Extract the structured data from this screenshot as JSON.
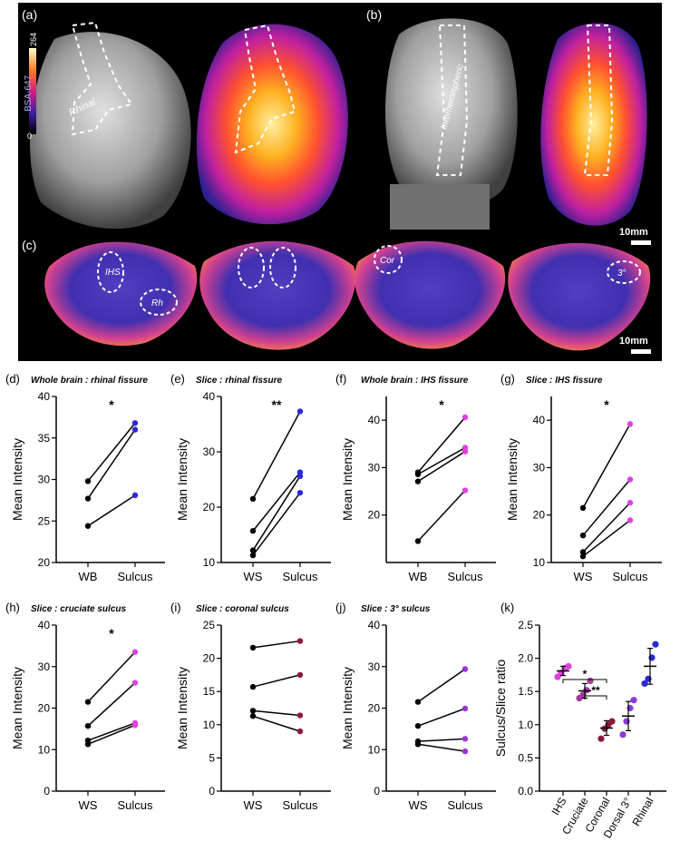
{
  "images": {
    "panel_labels": [
      "(a)",
      "(b)",
      "(c)"
    ],
    "colorbar": {
      "label": "BSA-647",
      "max": "264",
      "min": "0"
    },
    "annotations": {
      "rhinal": "Rhinal",
      "interhemispheric": "Interhemispheric",
      "ihs": "IHS",
      "rh": "Rh",
      "cor": "Cor",
      "third": "3°"
    },
    "scalebars": [
      "10mm",
      "10mm"
    ]
  },
  "colors": {
    "black": "#000000",
    "blue": "#2a2ad6",
    "magenta": "#e040e0",
    "plum": "#a23a9e",
    "purple": "#9b35d6",
    "violet": "#8a3bd6",
    "darkred": "#8b1a3a"
  },
  "chart_data": [
    {
      "id": "d",
      "panel_label": "(d)",
      "title": "Whole brain : rhinal fissure",
      "type": "line",
      "ylabel": "Mean Intensity",
      "categories": [
        "WB",
        "Sulcus"
      ],
      "ylim": [
        20,
        40
      ],
      "yticks": [
        20,
        25,
        30,
        35,
        40
      ],
      "significance": "*",
      "color_b": "#2a2ad6",
      "series": [
        {
          "values": [
            29.8,
            36.8
          ]
        },
        {
          "values": [
            27.7,
            36.0
          ]
        },
        {
          "values": [
            24.4,
            28.1
          ]
        }
      ]
    },
    {
      "id": "e",
      "panel_label": "(e)",
      "title": "Slice : rhinal fissure",
      "type": "line",
      "ylabel": "Mean Intensity",
      "categories": [
        "WS",
        "Sulcus"
      ],
      "ylim": [
        10,
        40
      ],
      "yticks": [
        10,
        20,
        30,
        40
      ],
      "significance": "**",
      "color_b": "#2a2ad6",
      "series": [
        {
          "values": [
            21.5,
            37.3
          ]
        },
        {
          "values": [
            15.7,
            26.3
          ]
        },
        {
          "values": [
            12.2,
            25.6
          ]
        },
        {
          "values": [
            11.3,
            22.6
          ]
        }
      ]
    },
    {
      "id": "f",
      "panel_label": "(f)",
      "title": "Whole brain : IHS fissure",
      "type": "line",
      "ylabel": "Mean Intensity",
      "categories": [
        "WB",
        "Sulcus"
      ],
      "ylim": [
        10,
        45
      ],
      "yticks": [
        20,
        30,
        40
      ],
      "significance": "*",
      "color_b": "#e040e0",
      "series": [
        {
          "values": [
            29.0,
            40.6
          ]
        },
        {
          "values": [
            28.6,
            34.2
          ]
        },
        {
          "values": [
            27.1,
            33.4
          ]
        },
        {
          "values": [
            14.5,
            25.2
          ]
        }
      ]
    },
    {
      "id": "g",
      "panel_label": "(g)",
      "title": "Slice : IHS fissure",
      "type": "line",
      "ylabel": "Mean Intensity",
      "categories": [
        "WS",
        "Sulcus"
      ],
      "ylim": [
        10,
        45
      ],
      "yticks": [
        10,
        20,
        30,
        40
      ],
      "significance": "*",
      "color_b": "#e040e0",
      "series": [
        {
          "values": [
            21.5,
            39.2
          ]
        },
        {
          "values": [
            15.7,
            27.5
          ]
        },
        {
          "values": [
            12.2,
            22.6
          ]
        },
        {
          "values": [
            11.3,
            18.9
          ]
        }
      ]
    },
    {
      "id": "h",
      "panel_label": "(h)",
      "title": "Slice : cruciate sulcus",
      "type": "line",
      "ylabel": "Mean Intensity",
      "categories": [
        "WS",
        "Sulcus"
      ],
      "ylim": [
        0,
        40
      ],
      "yticks": [
        0,
        10,
        20,
        30,
        40
      ],
      "significance": "*",
      "color_b": "#e040e0",
      "series": [
        {
          "values": [
            21.5,
            33.5
          ]
        },
        {
          "values": [
            15.7,
            26.1
          ]
        },
        {
          "values": [
            12.2,
            16.4
          ]
        },
        {
          "values": [
            11.3,
            15.9
          ]
        }
      ]
    },
    {
      "id": "i",
      "panel_label": "(i)",
      "title": "Slice : coronal sulcus",
      "type": "line",
      "ylabel": "Mean Intensity",
      "categories": [
        "WS",
        "Sulcus"
      ],
      "ylim": [
        0,
        25
      ],
      "yticks": [
        0,
        5,
        10,
        15,
        20,
        25
      ],
      "significance": "",
      "color_b": "#8b1a3a",
      "series": [
        {
          "values": [
            21.6,
            22.6
          ]
        },
        {
          "values": [
            15.7,
            17.5
          ]
        },
        {
          "values": [
            12.1,
            11.4
          ]
        },
        {
          "values": [
            11.3,
            9.0
          ]
        }
      ]
    },
    {
      "id": "j",
      "panel_label": "(j)",
      "title": "Slice : 3° sulcus",
      "type": "line",
      "ylabel": "Mean Intensity",
      "categories": [
        "WS",
        "Sulcus"
      ],
      "ylim": [
        0,
        40
      ],
      "yticks": [
        0,
        10,
        20,
        30,
        40
      ],
      "significance": "",
      "color_b": "#9b35d6",
      "series": [
        {
          "values": [
            21.5,
            29.4
          ]
        },
        {
          "values": [
            15.7,
            19.9
          ]
        },
        {
          "values": [
            12.0,
            12.6
          ]
        },
        {
          "values": [
            11.3,
            9.6
          ]
        }
      ]
    },
    {
      "id": "k",
      "panel_label": "(k)",
      "type": "scatter",
      "ylabel": "Sulcus/Slice ratio",
      "categories": [
        "IHS",
        "Cruciate",
        "Coronal",
        "Dorsal 3°",
        "Rhinal"
      ],
      "ylim": [
        0,
        2.5
      ],
      "yticks": [
        "0.0",
        "0.5",
        "1.0",
        "1.5",
        "2.0",
        "2.5"
      ],
      "groups": [
        {
          "color": "#e040e0",
          "values": [
            1.72,
            1.78,
            1.85,
            1.88
          ],
          "mean": 1.81,
          "sd": 0.07
        },
        {
          "color": "#a23a9e",
          "values": [
            1.4,
            1.45,
            1.52,
            1.66
          ],
          "mean": 1.51,
          "sd": 0.11
        },
        {
          "color": "#8b1a3a",
          "values": [
            0.79,
            0.94,
            1.0,
            1.05
          ],
          "mean": 0.95,
          "sd": 0.11
        },
        {
          "color": "#8a3bd6",
          "values": [
            0.85,
            1.05,
            1.25,
            1.37
          ],
          "mean": 1.13,
          "sd": 0.22
        },
        {
          "color": "#2a2ad6",
          "values": [
            1.62,
            1.69,
            2.01,
            2.21
          ],
          "mean": 1.88,
          "sd": 0.27
        }
      ],
      "brackets": [
        {
          "from": 0,
          "to": 2,
          "label": "*"
        },
        {
          "from": 1,
          "to": 2,
          "label": "**"
        }
      ]
    }
  ]
}
